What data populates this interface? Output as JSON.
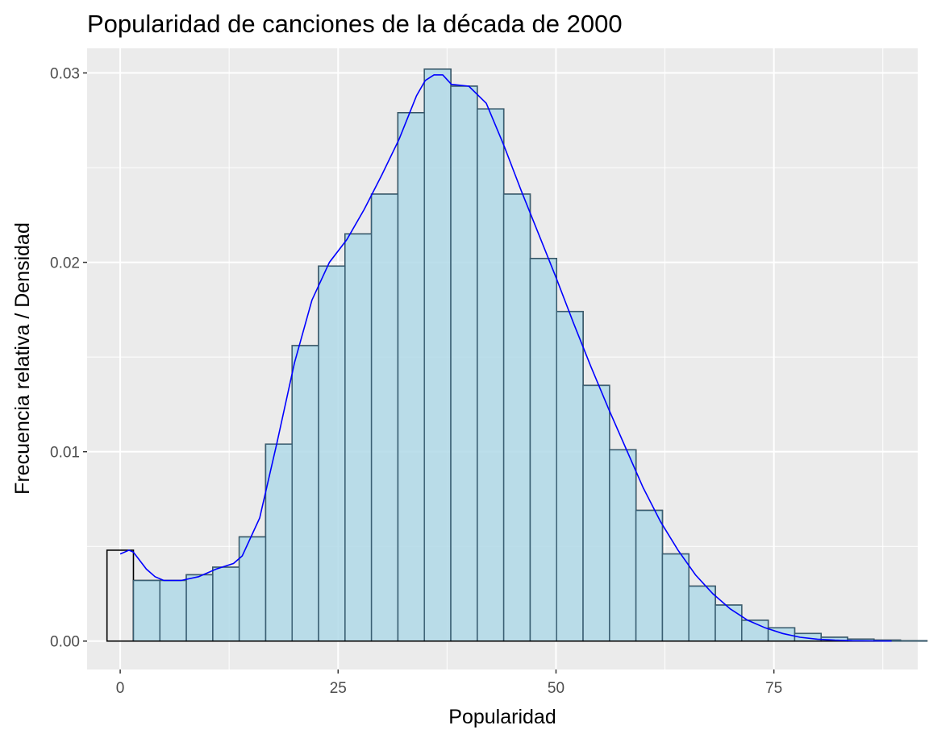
{
  "chart_data": {
    "type": "bar",
    "title": "Popularidad de canciones de la década de 2000",
    "xlabel": "Popularidad",
    "ylabel": "Frecuencia relativa / Densidad",
    "xlim": [
      -3.8,
      91.5
    ],
    "ylim": [
      -0.0015,
      0.0313
    ],
    "x_ticks": [
      0,
      25,
      50,
      75
    ],
    "x_tick_labels": [
      "0",
      "25",
      "50",
      "75"
    ],
    "y_ticks": [
      0.0,
      0.01,
      0.02,
      0.03
    ],
    "y_tick_labels": [
      "0.00",
      "0.01",
      "0.02",
      "0.03"
    ],
    "grid": true,
    "bin_width": 3.0345,
    "bins_start": -1.517,
    "relative_frequency": [
      0.0048,
      0.0032,
      0.0032,
      0.0035,
      0.0039,
      0.0055,
      0.0104,
      0.0156,
      0.0198,
      0.0215,
      0.0236,
      0.0279,
      0.0302,
      0.0293,
      0.0281,
      0.0236,
      0.0202,
      0.0174,
      0.0135,
      0.0101,
      0.0069,
      0.0046,
      0.0029,
      0.0019,
      0.0011,
      0.0007,
      0.0004,
      0.0002,
      0.0001,
      5e-05,
      2e-05
    ],
    "density_histogram": [
      0.0,
      0.0032,
      0.0032,
      0.0035,
      0.0039,
      0.0055,
      0.0104,
      0.0156,
      0.0198,
      0.0215,
      0.0236,
      0.0279,
      0.0302,
      0.0293,
      0.0281,
      0.0236,
      0.0202,
      0.0174,
      0.0135,
      0.0101,
      0.0069,
      0.0046,
      0.0029,
      0.0019,
      0.0011,
      0.0007,
      0.0004,
      0.0002,
      0.0001,
      5e-05,
      2e-05
    ],
    "density_curve": {
      "x": [
        0,
        0.5,
        1,
        1.5,
        2,
        3,
        4,
        5,
        7,
        9,
        11,
        13,
        14,
        16,
        18,
        20,
        22,
        24,
        26,
        28,
        30,
        32,
        34,
        35,
        36,
        37,
        38,
        40,
        42,
        44,
        46,
        48,
        50,
        52,
        54,
        56,
        58,
        60,
        62,
        64,
        66,
        68,
        70,
        72,
        74,
        76,
        78,
        80,
        82,
        84,
        86,
        88.5
      ],
      "y": [
        0.0046,
        0.0047,
        0.0048,
        0.0047,
        0.0044,
        0.0038,
        0.0034,
        0.0032,
        0.0032,
        0.0034,
        0.0038,
        0.0041,
        0.0045,
        0.0065,
        0.0105,
        0.0147,
        0.018,
        0.02,
        0.0212,
        0.0228,
        0.0246,
        0.0265,
        0.0288,
        0.0296,
        0.0299,
        0.0299,
        0.0294,
        0.0293,
        0.0284,
        0.0262,
        0.0238,
        0.0215,
        0.0192,
        0.0168,
        0.0145,
        0.0123,
        0.0102,
        0.0081,
        0.0063,
        0.0048,
        0.0035,
        0.0025,
        0.0017,
        0.0011,
        0.0007,
        0.0004,
        0.0002,
        0.0001,
        5e-05,
        2e-05,
        1e-05,
        0.0
      ]
    },
    "colors": {
      "panel_bg": "#ebebeb",
      "grid": "#ffffff",
      "hist_outline": "#000000",
      "density_fill": "#add8e6",
      "density_outline": "#3a5f73",
      "curve": "#0000ff",
      "tick_text": "#4d4d4d"
    }
  }
}
